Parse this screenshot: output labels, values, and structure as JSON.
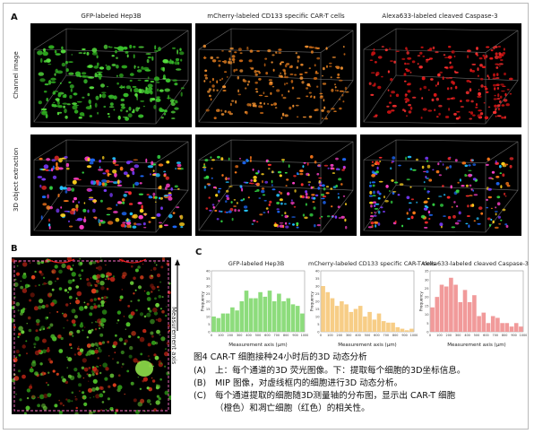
{
  "panels": {
    "a": {
      "letter": "A",
      "columns": [
        "GFP-labeled Hep3B",
        "mCherry-labeled CD133 specific CAR-T cells",
        "Alexa633-labeled cleaved Caspase-3"
      ],
      "rows": [
        "Channel image",
        "3D object extraction"
      ]
    },
    "b": {
      "letter": "B",
      "axis_label": "Measurement axis"
    },
    "c": {
      "letter": "C"
    }
  },
  "colors": {
    "green": "#7fd86a",
    "orange": "#f5c77e",
    "red": "#ef8f8f"
  },
  "chart_data": [
    {
      "type": "bar",
      "title": "GFP-labeled Hep3B",
      "xlabel": "Measurement axis (μm)",
      "ylabel": "Frequency",
      "xlim": [
        0,
        1000
      ],
      "ylim": [
        0,
        40
      ],
      "xticks": [
        0,
        100,
        200,
        300,
        400,
        500,
        600,
        700,
        800,
        900,
        1000
      ],
      "yticks": [
        0,
        5,
        10,
        15,
        20,
        25,
        30,
        35,
        40
      ],
      "values": [
        10,
        9,
        12,
        12,
        16,
        14,
        20,
        27,
        22,
        22,
        26,
        23,
        27,
        20,
        25,
        20,
        22,
        18,
        17,
        12
      ],
      "color": "#8ddc7c"
    },
    {
      "type": "bar",
      "title": "mCherry-labeled CD133 specific CAR-T cells",
      "xlabel": "Measurement axis (μm)",
      "ylabel": "Frequency",
      "xlim": [
        0,
        1000
      ],
      "ylim": [
        0,
        40
      ],
      "xticks": [
        0,
        100,
        200,
        300,
        400,
        500,
        600,
        700,
        800,
        900,
        1000
      ],
      "yticks": [
        0,
        5,
        10,
        15,
        20,
        25,
        30,
        35,
        40
      ],
      "values": [
        30,
        26,
        22,
        17,
        20,
        18,
        13,
        15,
        17,
        10,
        13,
        8,
        12,
        7,
        6,
        6,
        3,
        2,
        1,
        2
      ],
      "color": "#f7cd86"
    },
    {
      "type": "bar",
      "title": "Alexa633-labeled cleaved Caspase-3",
      "xlabel": "Measurement axis (μm)",
      "ylabel": "Frequency",
      "xlim": [
        0,
        1000
      ],
      "ylim": [
        0,
        35
      ],
      "xticks": [
        0,
        100,
        200,
        300,
        400,
        500,
        600,
        700,
        800,
        900,
        1000
      ],
      "yticks": [
        0,
        5,
        10,
        15,
        20,
        25,
        30,
        35
      ],
      "values": [
        14,
        20,
        27,
        26,
        31,
        27,
        17,
        24,
        17,
        21,
        9,
        11,
        5,
        9,
        8,
        5,
        5,
        3,
        5,
        3
      ],
      "color": "#f19a9a"
    }
  ],
  "caption": {
    "title": "图4 CAR-T 细胞接种24小时后的3D 动态分析",
    "items": [
      {
        "marker": "(A)",
        "text": "上：每个通道的3D 荧光图像。下：提取每个细胞的3D坐标信息。"
      },
      {
        "marker": "(B)",
        "text": "MIP 图像，对虚线框内的细胞进行3D 动态分析。"
      },
      {
        "marker": "(C)",
        "text": "每个通道提取的细胞随3D测量轴的分布图，显示出 CAR-T 细胞"
      },
      {
        "marker": "",
        "text": "（橙色）和凋亡细胞（红色）的相关性。"
      }
    ]
  }
}
